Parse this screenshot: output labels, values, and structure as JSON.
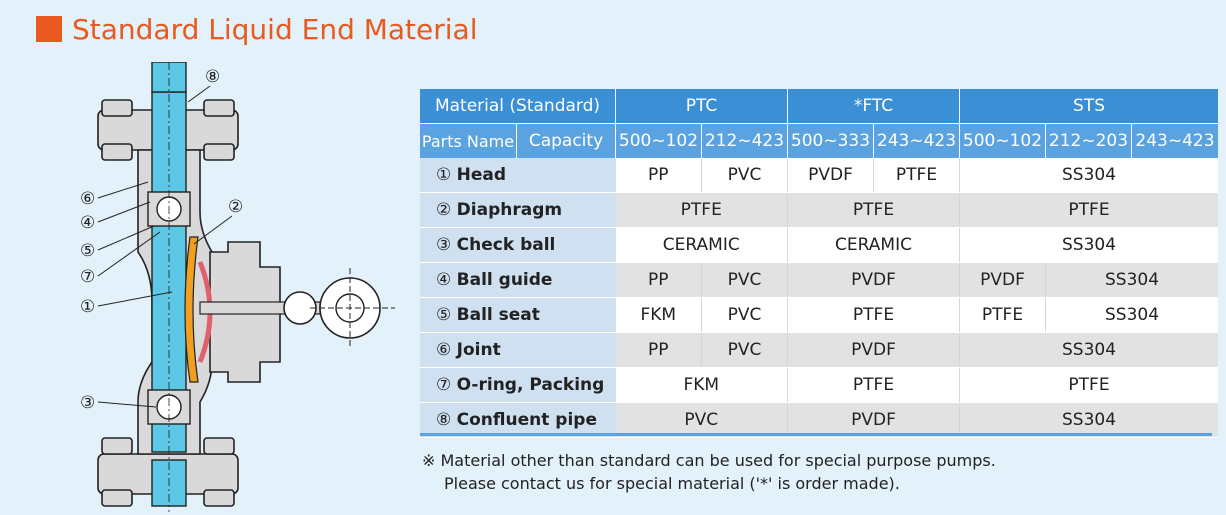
{
  "title": "Standard Liquid End Material",
  "colors": {
    "accent": "#e85a1e",
    "header": "#3a8fd5",
    "subheader": "#5aa3e0",
    "label_bg": "#cfe0f0",
    "background": "#e3f1fa"
  },
  "diagram": {
    "callouts": [
      "⑧",
      "⑥",
      "④",
      "⑤",
      "⑦",
      "①",
      "②",
      "③"
    ]
  },
  "table": {
    "header1": {
      "material_label": "Material (Standard)",
      "ptc": "PTC",
      "ftc": "*FTC",
      "sts": "STS"
    },
    "header2": {
      "parts_name": "Parts Name",
      "capacity": "Capacity",
      "c1": "500~102",
      "c2": "212~423",
      "c3": "500~333",
      "c4": "243~423",
      "c5": "500~102",
      "c6": "212~203",
      "c7": "243~423"
    },
    "rows": [
      {
        "num": "①",
        "name": "Head",
        "cells": [
          "PP",
          "PVC",
          "PVDF",
          "PTFE",
          "SS304"
        ]
      },
      {
        "num": "②",
        "name": "Diaphragm",
        "cells": [
          "PTFE",
          "PTFE",
          "PTFE"
        ]
      },
      {
        "num": "③",
        "name": "Check ball",
        "cells": [
          "CERAMIC",
          "CERAMIC",
          "SS304"
        ]
      },
      {
        "num": "④",
        "name": "Ball guide",
        "cells": [
          "PP",
          "PVC",
          "PVDF",
          "PVDF",
          "SS304"
        ]
      },
      {
        "num": "⑤",
        "name": "Ball seat",
        "cells": [
          "FKM",
          "PVC",
          "PTFE",
          "PTFE",
          "SS304"
        ]
      },
      {
        "num": "⑥",
        "name": "Joint",
        "cells": [
          "PP",
          "PVC",
          "PVDF",
          "SS304"
        ]
      },
      {
        "num": "⑦",
        "name": "O-ring, Packing",
        "cells": [
          "FKM",
          "PTFE",
          "PTFE"
        ]
      },
      {
        "num": "⑧",
        "name": "Confluent pipe",
        "cells": [
          "PVC",
          "PVDF",
          "SS304"
        ]
      }
    ]
  },
  "note": {
    "line1": "※ Material other than standard can be used for special purpose pumps.",
    "line2": "Please contact us for special material ('*' is order made)."
  }
}
